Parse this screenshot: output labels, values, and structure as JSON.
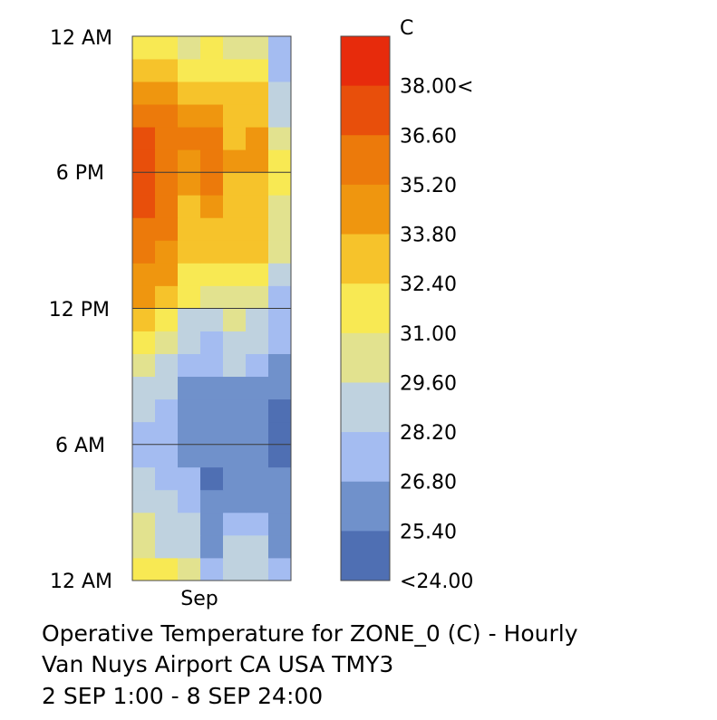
{
  "chart_data": {
    "type": "heatmap",
    "title_lines": [
      "Operative Temperature for ZONE_0 (C) - Hourly",
      "Van Nuys Airport CA USA TMY3",
      "2 SEP 1:00 - 8 SEP 24:00"
    ],
    "x_tick_labels": [
      "Sep"
    ],
    "y_tick_labels": [
      "12 AM",
      "6 PM",
      "12 PM",
      "6 AM",
      "12 AM"
    ],
    "days": [
      "2 SEP",
      "3 SEP",
      "4 SEP",
      "5 SEP",
      "6 SEP",
      "7 SEP",
      "8 SEP"
    ],
    "hours": [
      "1:00",
      "2:00",
      "3:00",
      "4:00",
      "5:00",
      "6:00",
      "7:00",
      "8:00",
      "9:00",
      "10:00",
      "11:00",
      "12:00",
      "13:00",
      "14:00",
      "15:00",
      "16:00",
      "17:00",
      "18:00",
      "19:00",
      "20:00",
      "21:00",
      "22:00",
      "23:00",
      "24:00"
    ],
    "values_by_hour": [
      [
        29.8,
        29.6,
        28.4,
        26.7,
        28.0,
        27.4,
        25.5
      ],
      [
        28.3,
        28.0,
        27.6,
        25.3,
        27.2,
        27.2,
        24.7
      ],
      [
        28.6,
        27.9,
        26.8,
        24.9,
        25.8,
        25.4,
        24.5
      ],
      [
        27.5,
        27.3,
        26.3,
        24.2,
        24.8,
        25.3,
        24.3
      ],
      [
        27.1,
        26.6,
        25.6,
        23.9,
        24.9,
        25.1,
        24.0
      ],
      [
        26.7,
        26.0,
        25.2,
        24.1,
        24.2,
        25.0,
        23.9
      ],
      [
        26.4,
        25.9,
        24.8,
        24.0,
        24.5,
        24.4,
        23.8
      ],
      [
        27.3,
        26.3,
        24.9,
        24.4,
        24.4,
        24.2,
        23.9
      ],
      [
        27.8,
        27.2,
        25.0,
        24.9,
        25.1,
        25.0,
        24.2
      ],
      [
        28.6,
        27.7,
        26.3,
        25.8,
        26.8,
        26.6,
        24.9
      ],
      [
        29.7,
        28.4,
        26.9,
        26.6,
        27.6,
        26.9,
        25.5
      ],
      [
        31.5,
        29.9,
        27.3,
        27.5,
        28.2,
        26.8,
        25.5
      ],
      [
        32.7,
        31.8,
        29.8,
        29.5,
        28.5,
        28.6,
        25.9
      ],
      [
        33.5,
        32.4,
        30.6,
        30.7,
        29.7,
        29.8,
        27.2
      ],
      [
        34.4,
        33.5,
        31.4,
        31.3,
        31.0,
        31.0,
        28.5
      ],
      [
        35.1,
        34.2,
        31.7,
        31.9,
        31.1,
        31.3,
        28.4
      ],
      [
        35.6,
        35.1,
        32.1,
        32.6,
        31.5,
        31.5,
        29.4
      ],
      [
        36.0,
        34.8,
        33.1,
        34.0,
        31.6,
        31.9,
        29.7
      ],
      [
        35.4,
        34.9,
        33.5,
        34.3,
        32.7,
        32.6,
        29.8
      ],
      [
        35.2,
        34.8,
        34.0,
        33.9,
        32.2,
        32.4,
        28.2
      ],
      [
        34.0,
        33.9,
        32.6,
        32.6,
        31.5,
        31.0,
        27.6
      ],
      [
        33.7,
        33.6,
        31.8,
        31.9,
        31.7,
        31.5,
        27.2
      ],
      [
        31.4,
        31.3,
        30.6,
        30.7,
        30.4,
        29.8,
        26.5
      ],
      [
        30.6,
        30.7,
        28.5,
        30.1,
        28.9,
        28.2,
        26.1
      ]
    ],
    "legend": {
      "unit_label": "C",
      "tick_labels": [
        "38.00<",
        "36.60",
        "35.20",
        "33.80",
        "32.40",
        "31.00",
        "29.60",
        "28.20",
        "26.80",
        "25.40",
        "<24.00"
      ],
      "colors_top_to_bottom": [
        "#e72b0c",
        "#e84f0b",
        "#ec7a0b",
        "#ef960f",
        "#f6c32b",
        "#f8e953",
        "#e2e28f",
        "#bfd2df",
        "#a4bcf1",
        "#7091cb",
        "#4f6fb3"
      ],
      "bin_edges_top_to_bottom": [
        38.0,
        36.6,
        35.2,
        33.8,
        32.4,
        31.0,
        29.6,
        28.2,
        26.8,
        25.4,
        24.0
      ]
    },
    "grid": "horizontal lines at 6 AM, 12 PM, 6 PM",
    "legend_placement": "right"
  }
}
